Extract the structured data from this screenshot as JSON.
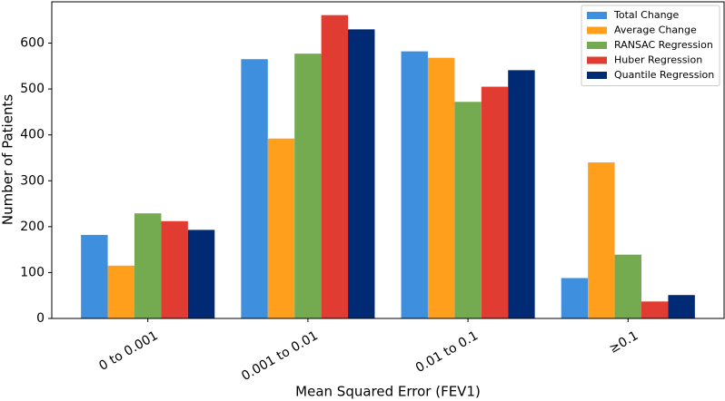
{
  "chart_data": {
    "type": "bar",
    "x_label": "Mean Squared Error (FEV1)",
    "y_label": "Number of Patients",
    "categories": [
      "0 to 0.001",
      "0.001 to 0.01",
      "0.01 to 0.1",
      "≥0.1"
    ],
    "series": [
      {
        "name": "Total Change",
        "color": "#3f8fdf",
        "values": [
          182,
          565,
          582,
          88
        ]
      },
      {
        "name": "Average Change",
        "color": "#ff9f1c",
        "values": [
          115,
          392,
          568,
          340
        ]
      },
      {
        "name": "RANSAC Regression",
        "color": "#74aa50",
        "values": [
          229,
          577,
          472,
          139
        ]
      },
      {
        "name": "Huber Regression",
        "color": "#e03c31",
        "values": [
          212,
          661,
          505,
          37
        ]
      },
      {
        "name": "Quantile Regression",
        "color": "#012a74",
        "values": [
          193,
          630,
          541,
          51
        ]
      }
    ],
    "ylim": [
      0,
      690
    ],
    "yticks": [
      0,
      100,
      200,
      300,
      400,
      500,
      600
    ],
    "legend": "upper right"
  }
}
